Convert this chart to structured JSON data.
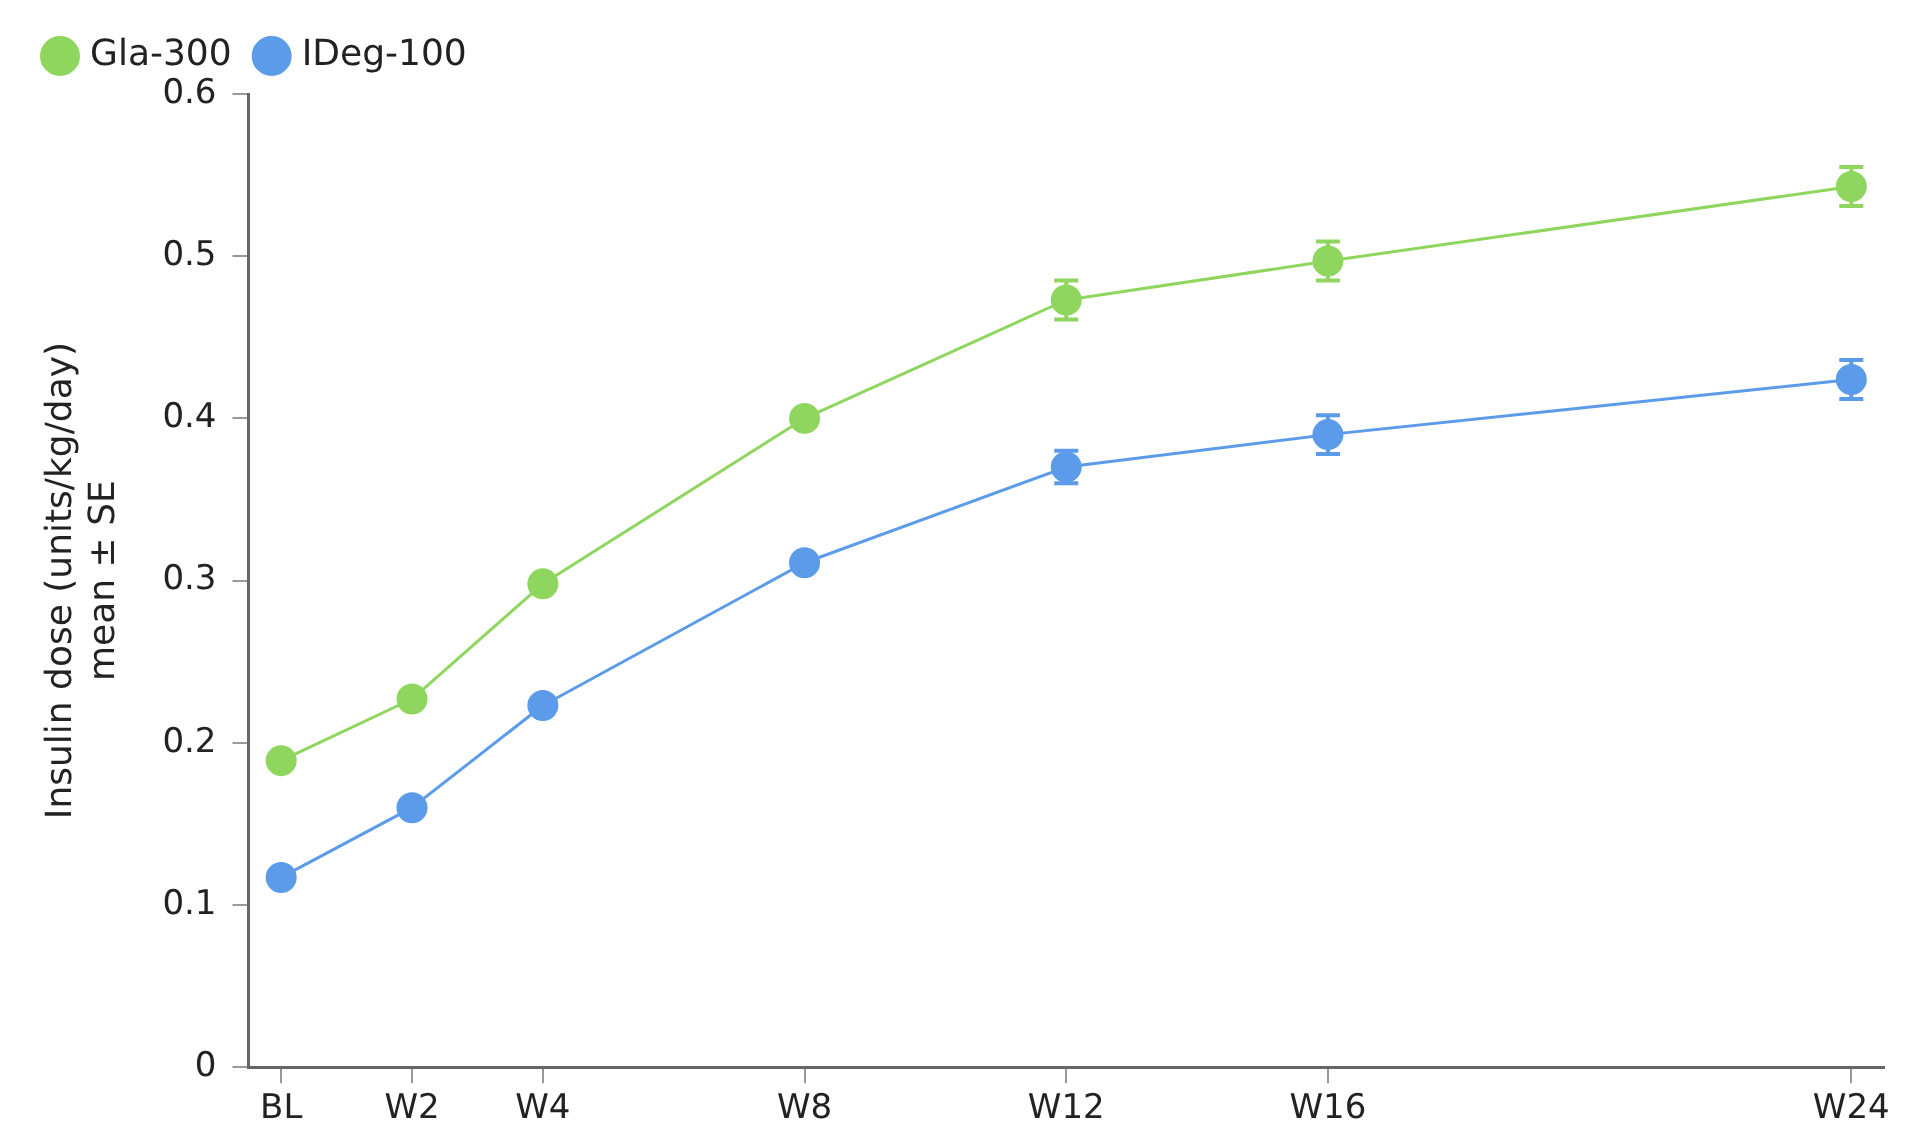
{
  "chart_data": {
    "type": "line",
    "ylabel": "Insulin dose (units/kg/day)\nmean ± SE",
    "categories": [
      "BL",
      null,
      "W2",
      null,
      "W4",
      null,
      null,
      null,
      "W8",
      null,
      null,
      null,
      "W12",
      null,
      null,
      null,
      "W16",
      null,
      null,
      null,
      null,
      null,
      null,
      null,
      "W24"
    ],
    "ylim": [
      0,
      0.6
    ],
    "yticks": [
      0,
      0.1,
      0.2,
      0.3,
      0.4,
      0.5,
      0.6
    ],
    "series": [
      {
        "name": "Gla-300",
        "color": "#8fd65f",
        "values": [
          0.189,
          null,
          0.227,
          null,
          0.298,
          null,
          null,
          null,
          0.4,
          null,
          null,
          null,
          0.473,
          null,
          null,
          null,
          0.497,
          null,
          null,
          null,
          null,
          null,
          null,
          null,
          0.543
        ],
        "errors": [
          null,
          null,
          null,
          null,
          null,
          null,
          null,
          null,
          null,
          null,
          null,
          null,
          0.012,
          null,
          null,
          null,
          0.012,
          null,
          null,
          null,
          null,
          null,
          null,
          null,
          0.012
        ]
      },
      {
        "name": "IDeg-100",
        "color": "#5b9bea",
        "values": [
          0.117,
          null,
          0.16,
          null,
          0.223,
          null,
          null,
          null,
          0.311,
          null,
          null,
          null,
          0.37,
          null,
          null,
          null,
          0.39,
          null,
          null,
          null,
          null,
          null,
          null,
          null,
          0.424
        ],
        "errors": [
          null,
          null,
          null,
          null,
          null,
          null,
          null,
          null,
          null,
          null,
          null,
          null,
          0.01,
          null,
          null,
          null,
          0.012,
          null,
          null,
          null,
          null,
          null,
          null,
          null,
          0.012
        ]
      }
    ],
    "grid": false,
    "legend": "top left",
    "marker": "circle",
    "line_style": "solid"
  }
}
